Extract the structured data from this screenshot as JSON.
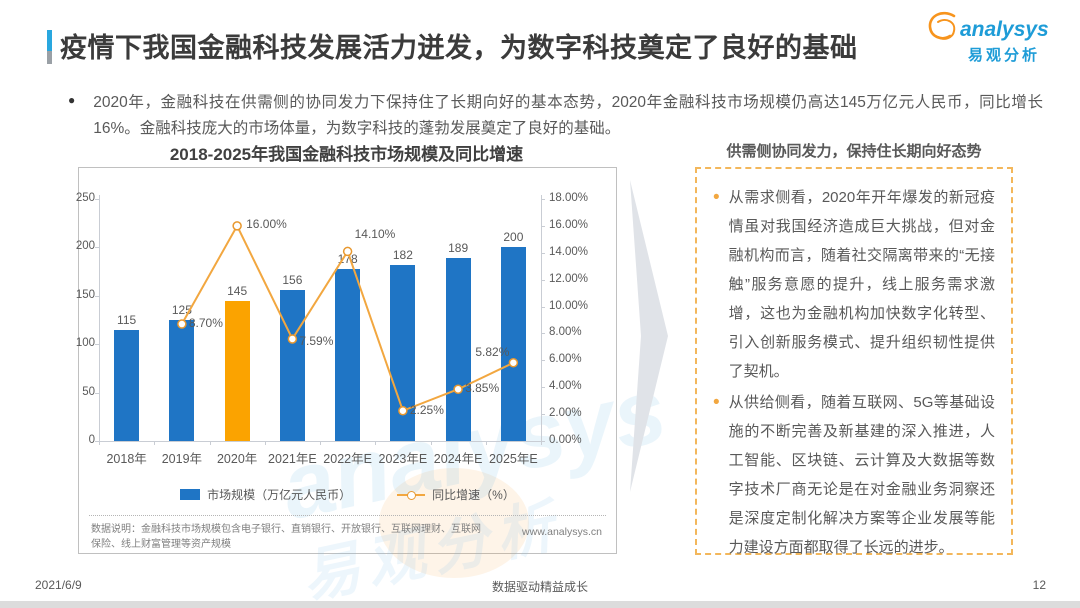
{
  "page": {
    "title": "疫情下我国金融科技发展活力迸发，为数字科技奠定了良好的基础",
    "bullet": "2020年，金融科技在供需侧的协同发力下保持住了长期向好的基本态势，2020年金融科技市场规模仍高达145万亿元人民币，同比增长16%。金融科技庞大的市场体量，为数字科技的蓬勃发展奠定了良好的基础。",
    "logo": {
      "brand": "analysys",
      "brand_cn": "易观分析"
    },
    "footer": {
      "date": "2021/6/9",
      "slogan": "数据驱动精益成长",
      "page_number": "12"
    }
  },
  "chart_data": {
    "type": "bar",
    "title": "2018-2025年我国金融科技市场规模及同比增速",
    "categories": [
      "2018年",
      "2019年",
      "2020年",
      "2021年E",
      "2022年E",
      "2023年E",
      "2024年E",
      "2025年E"
    ],
    "series": [
      {
        "name": "市场规模（万亿元人民币）",
        "type": "bar",
        "values": [
          115,
          125,
          145,
          156,
          178,
          182,
          189,
          200
        ]
      },
      {
        "name": "同比增速（%）",
        "type": "line",
        "values": [
          null,
          8.7,
          16.0,
          7.59,
          14.1,
          2.25,
          3.85,
          5.82
        ],
        "labels": [
          null,
          "8.70%",
          "16.00%",
          "7.59%",
          "14.10%",
          "2.25%",
          "3.85%",
          "5.82%"
        ]
      }
    ],
    "highlight_index": 2,
    "left_axis": {
      "min": 0,
      "max": 250,
      "step": 50,
      "ticks": [
        "0",
        "50",
        "100",
        "150",
        "200",
        "250"
      ]
    },
    "right_axis": {
      "min": 0,
      "max": 18,
      "step": 2,
      "ticks": [
        "0.00%",
        "2.00%",
        "4.00%",
        "6.00%",
        "8.00%",
        "10.00%",
        "12.00%",
        "14.00%",
        "16.00%",
        "18.00%"
      ]
    },
    "colors": {
      "bar": "#1f75c5",
      "bar_highlight": "#fba300",
      "line": "#f2a740",
      "marker_stroke": "#e8982f"
    },
    "legend_position": "bottom",
    "grid": false,
    "note": "数据说明：金融科技市场规模包含电子银行、直销银行、开放银行、互联网理财、互联网保险、线上财富管理等资产规模",
    "source_url": "www.analysys.cn"
  },
  "right_panel": {
    "heading": "供需侧协同发力，保持住长期向好态势",
    "bullets": [
      "从需求侧看，2020年开年爆发的新冠疫情虽对我国经济造成巨大挑战，但对金融机构而言，随着社交隔离带来的“无接触”服务意愿的提升，线上服务需求激增，这也为金融机构加快数字化转型、引入创新服务模式、提升组织韧性提供了契机。",
      "从供给侧看，随着互联网、5G等基础设施的不断完善及新基建的深入推进，人工智能、区块链、云计算及大数据等数字技术厂商无论是在对金融业务洞察还是深度定制化解决方案等企业发展等能力建设方面都取得了长远的进步。"
    ]
  }
}
